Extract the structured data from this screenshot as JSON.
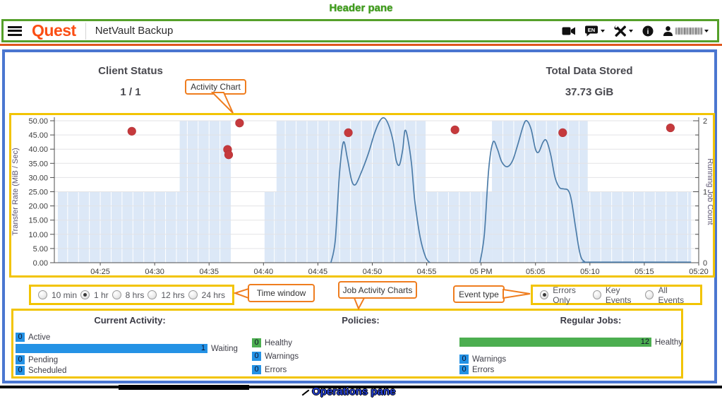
{
  "annotations": {
    "header_pane_label": "Header pane",
    "operations_pane_label": "Operations pane",
    "callouts": {
      "activity_chart": "Activity Chart",
      "time_window": "Time window",
      "job_activity": "Job Activity Charts",
      "event_type": "Event type"
    }
  },
  "header": {
    "logo_text": "Quest",
    "app_title": "NetVault Backup",
    "language_label": "EN",
    "user_name_obscured": true,
    "icons": [
      "video-camera",
      "language",
      "tools",
      "info",
      "user"
    ]
  },
  "summary": {
    "client_status_label": "Client Status",
    "client_status_value": "1 / 1",
    "total_data_label": "Total Data Stored",
    "total_data_value": "37.73 GiB"
  },
  "chart_data": {
    "type": "mixed",
    "time_unit": "decimal minutes after 16:00",
    "x_axis": {
      "min": 20.78,
      "max": 80,
      "ticks": [
        {
          "t": 25,
          "label": "04:25"
        },
        {
          "t": 30,
          "label": "04:30"
        },
        {
          "t": 35,
          "label": "04:35"
        },
        {
          "t": 40,
          "label": "04:40"
        },
        {
          "t": 45,
          "label": "04:45"
        },
        {
          "t": 50,
          "label": "04:50"
        },
        {
          "t": 55,
          "label": "04:55"
        },
        {
          "t": 60,
          "label": "05 PM"
        },
        {
          "t": 65,
          "label": "05:05"
        },
        {
          "t": 70,
          "label": "05:10"
        },
        {
          "t": 75,
          "label": "05:15"
        },
        {
          "t": 80,
          "label": "05:20"
        }
      ]
    },
    "y_left": {
      "label": "Transfer Rate (MiB / Sec)",
      "min": 0,
      "max": 50,
      "tick_step": 5,
      "tick_labels": [
        "0.00",
        "5.00",
        "10.00",
        "15.00",
        "20.00",
        "25.00",
        "30.00",
        "35.00",
        "40.00",
        "45.00",
        "50.00"
      ]
    },
    "y_right": {
      "label": "Running Job Count",
      "min": 0,
      "max": 2,
      "minor_step": 0.2,
      "major_ticks": [
        0,
        1,
        2
      ],
      "major_labels": [
        "0",
        "1",
        "2"
      ]
    },
    "area_color": "#dce8f7",
    "line_color": "#4c7ca8",
    "dot_color": "#c5393c",
    "running_jobs_steps": [
      {
        "start": 21.1,
        "end": 32.3,
        "count": 1
      },
      {
        "start": 32.3,
        "end": 37.0,
        "count": 2
      },
      {
        "start": 40.1,
        "end": 41.2,
        "count": 1
      },
      {
        "start": 41.2,
        "end": 54.9,
        "count": 2
      },
      {
        "start": 54.9,
        "end": 61.0,
        "count": 1
      },
      {
        "start": 61.0,
        "end": 69.8,
        "count": 2
      },
      {
        "start": 69.8,
        "end": 79.3,
        "count": 1
      }
    ],
    "transfer_rate_segments": [
      [
        [
          46.2,
          0
        ],
        [
          46.6,
          8
        ],
        [
          47.0,
          32
        ],
        [
          47.35,
          42.5
        ],
        [
          47.7,
          37
        ],
        [
          48.1,
          29
        ],
        [
          48.45,
          27.5
        ],
        [
          48.9,
          31
        ],
        [
          49.6,
          38
        ],
        [
          50.2,
          45.5
        ],
        [
          50.7,
          50
        ],
        [
          51.1,
          51
        ],
        [
          51.5,
          48.5
        ],
        [
          51.9,
          43
        ],
        [
          52.2,
          36
        ],
        [
          52.5,
          34.5
        ],
        [
          52.8,
          40
        ],
        [
          53.0,
          46.5
        ],
        [
          53.25,
          44
        ],
        [
          53.6,
          35
        ],
        [
          53.9,
          22
        ],
        [
          54.4,
          9
        ],
        [
          54.9,
          2
        ],
        [
          55.3,
          0
        ]
      ],
      [
        [
          59.9,
          0
        ],
        [
          60.3,
          10
        ],
        [
          60.7,
          33
        ],
        [
          61.1,
          42.5
        ],
        [
          61.5,
          40
        ],
        [
          61.9,
          35.5
        ],
        [
          62.4,
          33.8
        ],
        [
          62.9,
          36
        ],
        [
          63.4,
          42
        ],
        [
          63.9,
          48.5
        ],
        [
          64.2,
          50
        ],
        [
          64.6,
          47
        ],
        [
          65.0,
          40
        ],
        [
          65.3,
          39
        ],
        [
          65.7,
          42.5
        ],
        [
          66.0,
          43
        ],
        [
          66.4,
          38
        ],
        [
          66.8,
          30
        ],
        [
          67.2,
          26.5
        ],
        [
          67.6,
          26
        ],
        [
          68.0,
          25.5
        ],
        [
          68.3,
          22
        ],
        [
          68.7,
          12
        ],
        [
          69.1,
          3
        ],
        [
          69.5,
          0.4
        ],
        [
          70.2,
          0.2
        ],
        [
          79.3,
          0.2
        ]
      ]
    ],
    "error_events": [
      [
        27.9,
        46.3
      ],
      [
        36.7,
        39.9
      ],
      [
        36.8,
        38.0
      ],
      [
        37.8,
        49.2
      ],
      [
        47.8,
        45.8
      ],
      [
        57.6,
        46.8
      ],
      [
        67.5,
        45.8
      ],
      [
        77.4,
        47.5
      ]
    ]
  },
  "controls": {
    "time_window": {
      "options": [
        {
          "label": "10 min",
          "selected": false
        },
        {
          "label": "1 hr",
          "selected": true
        },
        {
          "label": "8 hrs",
          "selected": false
        },
        {
          "label": "12 hrs",
          "selected": false
        },
        {
          "label": "24 hrs",
          "selected": false
        }
      ]
    },
    "event_type": {
      "options": [
        {
          "label": "Errors Only",
          "selected": true
        },
        {
          "label": "Key Events",
          "selected": false
        },
        {
          "label": "All Events",
          "selected": false
        }
      ]
    }
  },
  "operations": {
    "columns": [
      {
        "id": "current-activity",
        "title": "Current Activity:",
        "rows": [
          {
            "value": "0",
            "label": "Active",
            "color": "blue"
          },
          {
            "value": "1",
            "label": "Waiting",
            "color": "blue",
            "bar": 272
          },
          {
            "value": "0",
            "label": "Pending",
            "color": "blue"
          },
          {
            "value": "0",
            "label": "Scheduled",
            "color": "blue"
          }
        ]
      },
      {
        "id": "policies",
        "title": "Policies:",
        "rows": [
          {
            "value": "0",
            "label": "Healthy",
            "color": "green"
          },
          {
            "value": "0",
            "label": "Warnings",
            "color": "blue"
          },
          {
            "value": "0",
            "label": "Errors",
            "color": "blue"
          }
        ]
      },
      {
        "id": "regular-jobs",
        "title": "Regular Jobs:",
        "rows": [
          {
            "value": "12",
            "label": "Healthy",
            "color": "green",
            "bar": 272
          },
          {
            "value": "0",
            "label": "Warnings",
            "color": "blue"
          },
          {
            "value": "0",
            "label": "Errors",
            "color": "blue"
          }
        ]
      }
    ]
  }
}
